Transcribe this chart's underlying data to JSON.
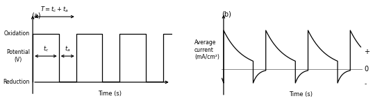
{
  "fig_width": 5.5,
  "fig_height": 1.62,
  "dpi": 100,
  "bg_color": "#ffffff",
  "panel_a": {
    "label": "(a)",
    "xlabel": "Time (s)",
    "ylabel": "Potential\n(V)",
    "oxidation_label": "Oxidation",
    "reduction_label": "Reduction",
    "period": 10,
    "high_dur": 6,
    "low_dur": 4,
    "high": 1.0,
    "low": -0.55,
    "num_cycles": 3,
    "xlim": [
      -0.5,
      32
    ],
    "ylim": [
      -1.1,
      1.8
    ],
    "annotation_T": "T = t_c + t_a",
    "annotation_tc": "t_c",
    "annotation_ta": "t_a"
  },
  "panel_b": {
    "label": "(b)",
    "xlabel": "Time (s)",
    "ylabel": "Average\ncurrent\n(mA/cm²)",
    "plus_label": "+",
    "zero_label": "0",
    "minus_label": "-",
    "period": 10,
    "high_dur": 7,
    "low_dur": 3,
    "i_peak": 1.0,
    "decay_tau": 4.5,
    "i_neg": -0.35,
    "neg_tau": 1.2,
    "num_cycles": 3,
    "xlim": [
      -0.5,
      33
    ],
    "ylim": [
      -0.75,
      1.55
    ]
  }
}
